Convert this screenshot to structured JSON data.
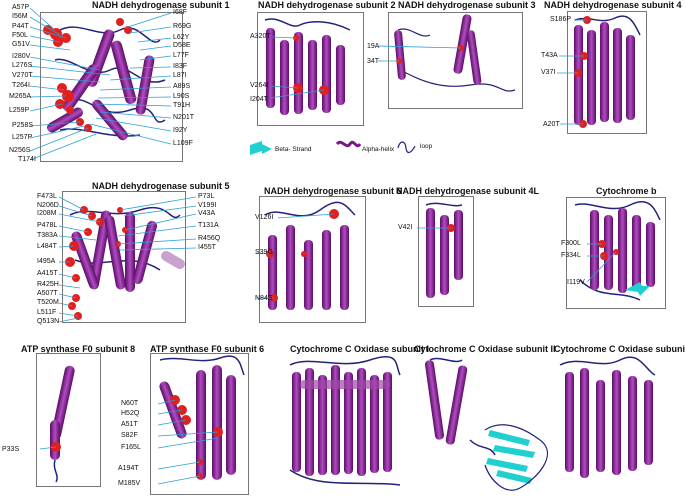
{
  "panels": {
    "nd1": {
      "title": "NADH dehydrogenase subunit 1",
      "left_labels": [
        "A57P",
        "I56M",
        "P44T",
        "F50L",
        "G51V",
        "I280V",
        "L276S",
        "V270T",
        "T264I",
        "M265A",
        "L259P",
        "P258S",
        "L257P",
        "N256S",
        "T174I"
      ],
      "right_labels": [
        "I68F",
        "R69G",
        "L62Y",
        "D58E",
        "L77F",
        "I83F",
        "L87I",
        "A89S",
        "L90S",
        "T91H",
        "N201T",
        "I92Y",
        "L109F"
      ]
    },
    "nd2": {
      "title": "NADH dehydrogenase subunit 2",
      "labels": [
        "A320T",
        "V264I",
        "I204T"
      ]
    },
    "nd3": {
      "title": "NADH dehydrogenase subunit 3",
      "labels": [
        "19A",
        "34T"
      ]
    },
    "nd4": {
      "title": "NADH dehydrogenase subunit 4",
      "labels": [
        "S186P",
        "T43A",
        "V37I",
        "A20T"
      ]
    },
    "nd5": {
      "title": "NADH dehydrogenase subunit 5",
      "left_labels": [
        "F473L",
        "N206D",
        "I208M",
        "P478L",
        "T383A",
        "L484T",
        "I495A",
        "A415T",
        "R425H",
        "A507T",
        "T520M",
        "L511F",
        "Q513N"
      ],
      "right_labels": [
        "P73L",
        "V199I",
        "V43A",
        "T131A",
        "R456Q",
        "I455T"
      ]
    },
    "nd6": {
      "title": "NADH dehydrogenase subunit 6",
      "labels": [
        "V126I",
        "S39G",
        "N84S"
      ]
    },
    "nd4l": {
      "title": "NADH dehydrogenase subunit 4L",
      "labels": [
        "V42I"
      ]
    },
    "cytb": {
      "title": "Cytochrome b",
      "labels": [
        "F300L",
        "F334L",
        "I119V"
      ]
    },
    "atp8": {
      "title": "ATP synthase F0 subunit 8",
      "labels": [
        "P33S"
      ]
    },
    "atp6": {
      "title": "ATP synthase F0 subunit 6",
      "labels": [
        "N60T",
        "H52Q",
        "A51T",
        "S82F",
        "F165L",
        "A194T",
        "M185V"
      ]
    },
    "cox1": {
      "title": "Cytochrome C Oxidase subunit I"
    },
    "cox2": {
      "title": "Cytochrome C Oxidase subunit II"
    },
    "cox3": {
      "title": "Cytochrome C Oxidase subunit III"
    }
  },
  "legend": {
    "beta": "Beta- Strand",
    "alpha": "Alpha-helix",
    "loop": "loop"
  },
  "colors": {
    "helix": "#7a1787",
    "helix_light": "#a04aa8",
    "loop": "#23237a",
    "mutation": "#e02020",
    "pointer": "#2aa0d8",
    "strand": "#20d0d0"
  }
}
